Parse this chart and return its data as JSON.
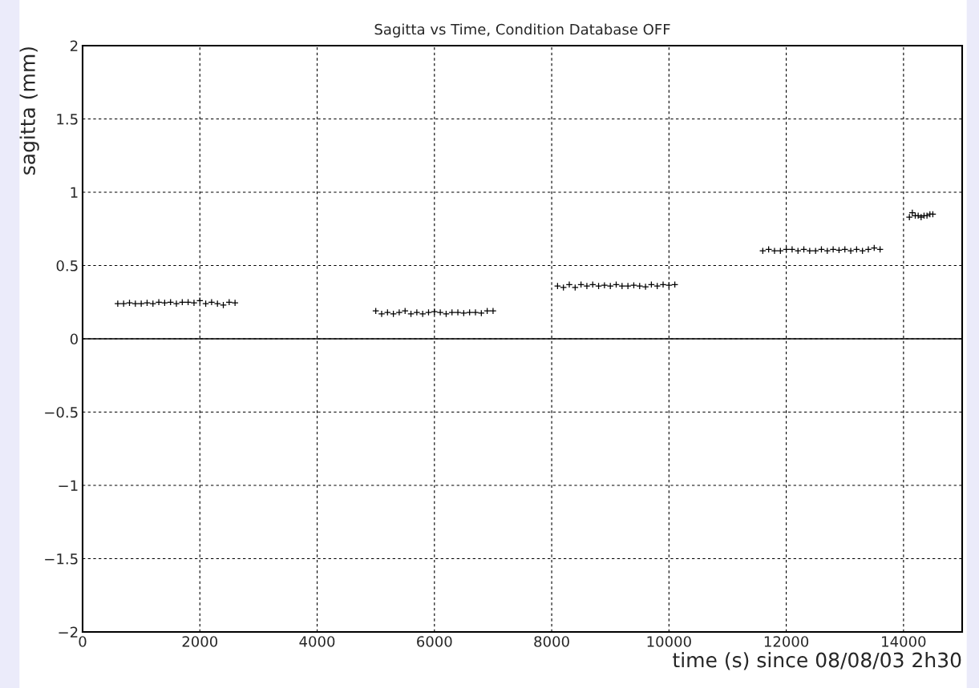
{
  "chart_data": {
    "type": "scatter",
    "title": "Sagitta vs Time, Condition Database OFF",
    "xlabel": "time (s) since 08/08/03 2h30",
    "ylabel": "sagitta (mm)",
    "x": [
      600,
      700,
      800,
      900,
      1000,
      1100,
      1200,
      1300,
      1400,
      1500,
      1600,
      1700,
      1800,
      1900,
      2000,
      2100,
      2200,
      2300,
      2400,
      2500,
      2600,
      5000,
      5100,
      5200,
      5300,
      5400,
      5500,
      5600,
      5700,
      5800,
      5900,
      6000,
      6100,
      6200,
      6300,
      6400,
      6500,
      6600,
      6700,
      6800,
      6900,
      7000,
      8100,
      8200,
      8300,
      8400,
      8500,
      8600,
      8700,
      8800,
      8900,
      9000,
      9100,
      9200,
      9300,
      9400,
      9500,
      9600,
      9700,
      9800,
      9900,
      10000,
      10100,
      11600,
      11700,
      11800,
      11900,
      12000,
      12100,
      12200,
      12300,
      12400,
      12500,
      12600,
      12700,
      12800,
      12900,
      13000,
      13100,
      13200,
      13300,
      13400,
      13500,
      13600,
      14100,
      14150,
      14200,
      14250,
      14300,
      14350,
      14400,
      14450,
      14500
    ],
    "series": [
      {
        "color": "#000000",
        "values": [
          0.24,
          0.24,
          0.245,
          0.24,
          0.24,
          0.245,
          0.24,
          0.25,
          0.245,
          0.25,
          0.24,
          0.25,
          0.25,
          0.245,
          0.26,
          0.24,
          0.25,
          0.24,
          0.23,
          0.25,
          0.245,
          0.19,
          0.17,
          0.18,
          0.17,
          0.18,
          0.19,
          0.17,
          0.18,
          0.17,
          0.18,
          0.185,
          0.18,
          0.17,
          0.18,
          0.18,
          0.175,
          0.18,
          0.18,
          0.175,
          0.19,
          0.19,
          0.36,
          0.35,
          0.37,
          0.35,
          0.37,
          0.36,
          0.37,
          0.36,
          0.365,
          0.36,
          0.37,
          0.36,
          0.36,
          0.365,
          0.36,
          0.355,
          0.37,
          0.36,
          0.37,
          0.365,
          0.37,
          0.6,
          0.61,
          0.6,
          0.6,
          0.61,
          0.61,
          0.6,
          0.61,
          0.6,
          0.6,
          0.61,
          0.6,
          0.61,
          0.605,
          0.61,
          0.6,
          0.61,
          0.6,
          0.61,
          0.62,
          0.61,
          0.83,
          0.86,
          0.84,
          0.84,
          0.83,
          0.84,
          0.84,
          0.85,
          0.85
        ]
      }
    ],
    "xlim": [
      0,
      15000
    ],
    "ylim": [
      -2,
      2
    ],
    "xticks": [
      0,
      2000,
      4000,
      6000,
      8000,
      10000,
      12000,
      14000
    ],
    "yticks": [
      -2,
      -1.5,
      -1,
      -0.5,
      0,
      0.5,
      1,
      1.5,
      2
    ],
    "grid": true,
    "marker": "cross",
    "ref_lines": [
      {
        "axis": "y",
        "value": 0,
        "color": "#000000",
        "line_style": "solid"
      }
    ]
  }
}
